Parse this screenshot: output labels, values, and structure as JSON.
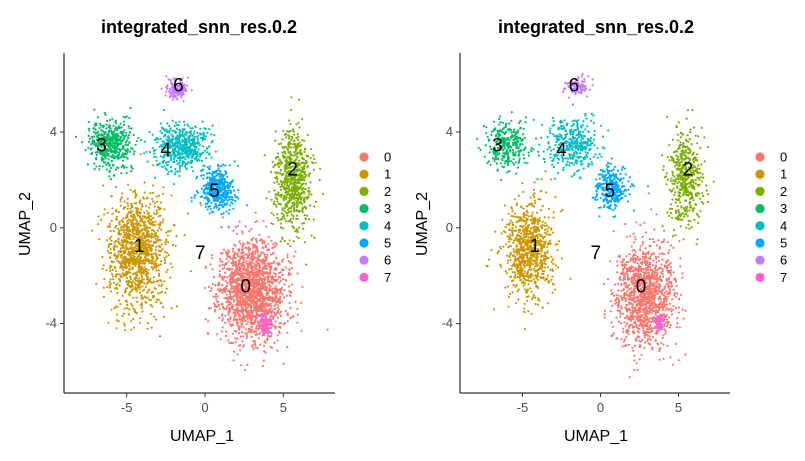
{
  "chart_data": [
    {
      "type": "scatter",
      "title": "integrated_snn_res.0.2",
      "xlabel": "UMAP_1",
      "ylabel": "UMAP_2",
      "xlim": [
        -9,
        8.3
      ],
      "ylim": [
        -6.9,
        7.3
      ],
      "xticks": [
        -5,
        0,
        5
      ],
      "yticks": [
        -4,
        0,
        4
      ],
      "grid": false,
      "legend_position": "right",
      "series": [
        {
          "name": "0",
          "color": "#F8766D",
          "center": [
            3.0,
            -2.6
          ],
          "spread": [
            1.9,
            1.9
          ]
        },
        {
          "name": "1",
          "color": "#CD9600",
          "center": [
            -4.3,
            -1.0
          ],
          "spread": [
            1.7,
            2.2
          ]
        },
        {
          "name": "2",
          "color": "#7CAE00",
          "center": [
            5.6,
            2.0
          ],
          "spread": [
            1.0,
            1.9
          ]
        },
        {
          "name": "3",
          "color": "#00BE67",
          "center": [
            -6.0,
            3.5
          ],
          "spread": [
            1.3,
            0.9
          ]
        },
        {
          "name": "4",
          "color": "#00BFC4",
          "center": [
            -1.5,
            3.4
          ],
          "spread": [
            1.6,
            0.9
          ]
        },
        {
          "name": "5",
          "color": "#00A9FF",
          "center": [
            0.8,
            1.6
          ],
          "spread": [
            1.0,
            0.8
          ]
        },
        {
          "name": "6",
          "color": "#C77CFF",
          "center": [
            -1.8,
            5.8
          ],
          "spread": [
            0.6,
            0.4
          ]
        },
        {
          "name": "7",
          "color": "#FF61CC",
          "center": [
            3.8,
            -4.0
          ],
          "spread": [
            0.4,
            0.4
          ]
        }
      ],
      "cluster_labels": [
        {
          "text": "0",
          "x": 2.6,
          "y": -2.5
        },
        {
          "text": "1",
          "x": -4.2,
          "y": -0.8
        },
        {
          "text": "2",
          "x": 5.6,
          "y": 2.4
        },
        {
          "text": "3",
          "x": -6.6,
          "y": 3.4
        },
        {
          "text": "4",
          "x": -2.5,
          "y": 3.2
        },
        {
          "text": "5",
          "x": 0.6,
          "y": 1.5
        },
        {
          "text": "6",
          "x": -1.7,
          "y": 5.9
        },
        {
          "text": "7",
          "x": -0.3,
          "y": -1.1
        }
      ]
    },
    {
      "type": "scatter",
      "title": "integrated_snn_res.0.2",
      "xlabel": "UMAP_1",
      "ylabel": "UMAP_2",
      "xlim": [
        -9,
        8.3
      ],
      "ylim": [
        -6.9,
        7.3
      ],
      "xticks": [
        -5,
        0,
        5
      ],
      "yticks": [
        -4,
        0,
        4
      ],
      "grid": false,
      "legend_position": "right",
      "series": [
        {
          "name": "0",
          "color": "#F8766D",
          "center": [
            2.8,
            -2.8
          ],
          "spread": [
            1.7,
            1.9
          ]
        },
        {
          "name": "1",
          "color": "#CD9600",
          "center": [
            -4.6,
            -0.9
          ],
          "spread": [
            1.5,
            1.9
          ]
        },
        {
          "name": "2",
          "color": "#7CAE00",
          "center": [
            5.4,
            2.0
          ],
          "spread": [
            1.0,
            1.8
          ]
        },
        {
          "name": "3",
          "color": "#00BE67",
          "center": [
            -6.0,
            3.5
          ],
          "spread": [
            1.2,
            0.9
          ]
        },
        {
          "name": "4",
          "color": "#00BFC4",
          "center": [
            -1.8,
            3.5
          ],
          "spread": [
            1.5,
            0.9
          ]
        },
        {
          "name": "5",
          "color": "#00A9FF",
          "center": [
            0.7,
            1.7
          ],
          "spread": [
            1.0,
            0.8
          ]
        },
        {
          "name": "6",
          "color": "#C77CFF",
          "center": [
            -1.5,
            5.9
          ],
          "spread": [
            0.7,
            0.3
          ]
        },
        {
          "name": "7",
          "color": "#FF61CC",
          "center": [
            3.8,
            -4.0
          ],
          "spread": [
            0.3,
            0.3
          ]
        }
      ],
      "cluster_labels": [
        {
          "text": "0",
          "x": 2.6,
          "y": -2.5
        },
        {
          "text": "1",
          "x": -4.2,
          "y": -0.8
        },
        {
          "text": "2",
          "x": 5.6,
          "y": 2.4
        },
        {
          "text": "3",
          "x": -6.6,
          "y": 3.4
        },
        {
          "text": "4",
          "x": -2.5,
          "y": 3.2
        },
        {
          "text": "5",
          "x": 0.6,
          "y": 1.5
        },
        {
          "text": "6",
          "x": -1.7,
          "y": 5.9
        },
        {
          "text": "7",
          "x": -0.3,
          "y": -1.1
        }
      ]
    }
  ]
}
